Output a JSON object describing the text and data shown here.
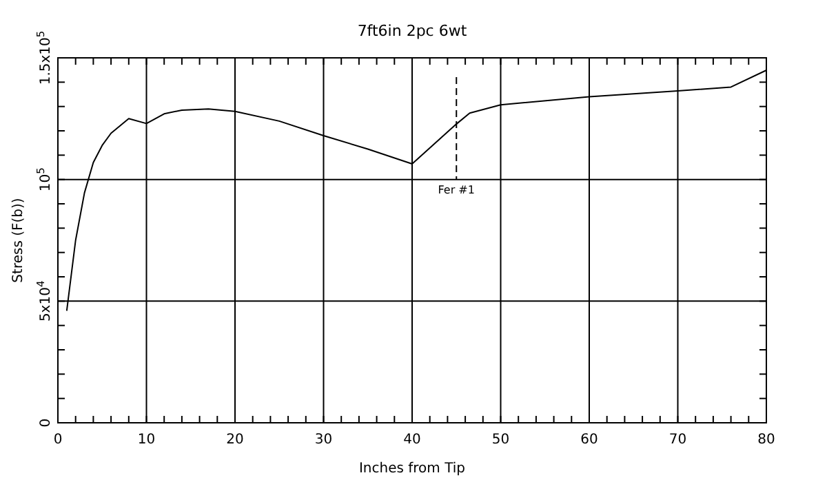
{
  "chart_data": {
    "type": "line",
    "title": "7ft6in 2pc 6wt",
    "xlabel": "Inches from Tip",
    "ylabel": "Stress (F(b))",
    "x": [
      1,
      2,
      3,
      4,
      5,
      6,
      8,
      10,
      12,
      14,
      17,
      20,
      25,
      30,
      35,
      40,
      45,
      46.5,
      50,
      60,
      70,
      76,
      80
    ],
    "series": [
      {
        "color": "#000000",
        "values": [
          46000,
          75000,
          94500,
          107000,
          114000,
          119000,
          125000,
          123000,
          127000,
          128500,
          129000,
          128000,
          124000,
          118000,
          112500,
          106400,
          122800,
          127300,
          130700,
          134000,
          136400,
          138000,
          144900
        ]
      }
    ],
    "xlim": [
      0,
      80
    ],
    "ylim": [
      0,
      150000
    ],
    "xticks": [
      0,
      {
        "value": 2,
        "label": null
      },
      {
        "value": 4,
        "label": null
      },
      {
        "value": 6,
        "label": null
      },
      {
        "value": 8,
        "label": null
      },
      10,
      {
        "value": 12,
        "label": null
      },
      {
        "value": 14,
        "label": null
      },
      {
        "value": 16,
        "label": null
      },
      {
        "value": 18,
        "label": null
      },
      20,
      {
        "value": 22,
        "label": null
      },
      {
        "value": 24,
        "label": null
      },
      {
        "value": 26,
        "label": null
      },
      {
        "value": 28,
        "label": null
      },
      30,
      {
        "value": 32,
        "label": null
      },
      {
        "value": 34,
        "label": null
      },
      {
        "value": 36,
        "label": null
      },
      {
        "value": 38,
        "label": null
      },
      40,
      {
        "value": 42,
        "label": null
      },
      {
        "value": 44,
        "label": null
      },
      {
        "value": 46,
        "label": null
      },
      {
        "value": 48,
        "label": null
      },
      50,
      {
        "value": 52,
        "label": null
      },
      {
        "value": 54,
        "label": null
      },
      {
        "value": 56,
        "label": null
      },
      {
        "value": 58,
        "label": null
      },
      60,
      {
        "value": 62,
        "label": null
      },
      {
        "value": 64,
        "label": null
      },
      {
        "value": 66,
        "label": null
      },
      {
        "value": 68,
        "label": null
      },
      70,
      {
        "value": 72,
        "label": null
      },
      {
        "value": 74,
        "label": null
      },
      {
        "value": 76,
        "label": null
      },
      {
        "value": 78,
        "label": null
      },
      80
    ],
    "yticks": [
      0,
      {
        "value": 10000,
        "label": null
      },
      {
        "value": 20000,
        "label": null
      },
      {
        "value": 30000,
        "label": null
      },
      {
        "value": 40000,
        "label": null
      },
      {
        "value": 50000,
        "label": "5x10$^{4}$"
      },
      {
        "value": 60000,
        "label": null
      },
      {
        "value": 70000,
        "label": null
      },
      {
        "value": 80000,
        "label": null
      },
      {
        "value": 90000,
        "label": null
      },
      {
        "value": 100000,
        "label": "10$^{5}$"
      },
      {
        "value": 110000,
        "label": null
      },
      {
        "value": 120000,
        "label": null
      },
      {
        "value": 130000,
        "label": null
      },
      {
        "value": 140000,
        "label": null
      },
      {
        "value": 150000,
        "label": "1.5x10$^{5}$"
      }
    ],
    "grid": true,
    "ref_lines": [
      {
        "axis": "x",
        "value": 45,
        "label": "Fer #1",
        "line_style": "dashed",
        "color": "#000000"
      }
    ]
  }
}
